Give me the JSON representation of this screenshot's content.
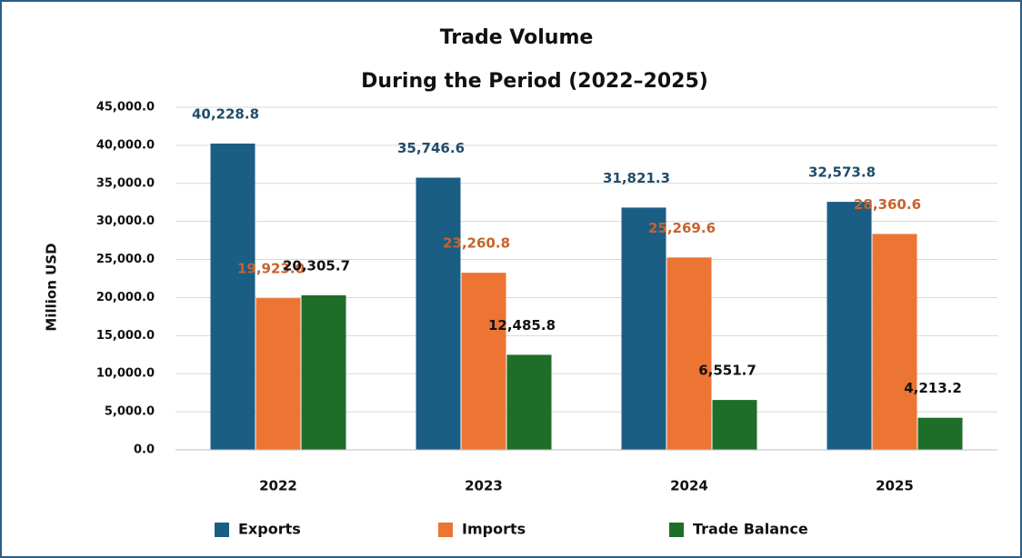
{
  "chart_data": {
    "type": "bar",
    "title": "Trade Volume",
    "subtitle": "During the Period (2022–2025)",
    "y_label": "Million USD",
    "categories": [
      "2022",
      "2023",
      "2024",
      "2025"
    ],
    "series": [
      {
        "name": "Exports",
        "color": "#1b5e84",
        "label_color": "#1f4e6b",
        "values": [
          40228.8,
          35746.6,
          31821.3,
          32573.8
        ],
        "value_labels": [
          "40,228.8",
          "35,746.6",
          "31,821.3",
          "32,573.8"
        ]
      },
      {
        "name": "Imports",
        "color": "#ed7534",
        "label_color": "#c9622a",
        "values": [
          19923.0,
          23260.8,
          25269.6,
          28360.6
        ],
        "value_labels": [
          "19,923.0",
          "23,260.8",
          "25,269.6",
          "28,360.6"
        ]
      },
      {
        "name": "Trade Balance",
        "color": "#1e6e2a",
        "label_color": "#111111",
        "values": [
          20305.7,
          12485.8,
          6551.7,
          4213.2
        ],
        "value_labels": [
          "20,305.7",
          "12,485.8",
          "6,551.7",
          "4,213.2"
        ]
      }
    ],
    "ylim": [
      0,
      45000
    ],
    "yticks": [
      {
        "value": 0,
        "label": "0.0"
      },
      {
        "value": 5000,
        "label": "5,000.0"
      },
      {
        "value": 10000,
        "label": "10,000.0"
      },
      {
        "value": 15000,
        "label": "15,000.0"
      },
      {
        "value": 20000,
        "label": "20,000.0"
      },
      {
        "value": 25000,
        "label": "25,000.0"
      },
      {
        "value": 30000,
        "label": "30,000.0"
      },
      {
        "value": 35000,
        "label": "35,000.0"
      },
      {
        "value": 40000,
        "label": "40,000.0"
      },
      {
        "value": 45000,
        "label": "45,000.0"
      }
    ],
    "grid": true,
    "legend": "bottom"
  }
}
